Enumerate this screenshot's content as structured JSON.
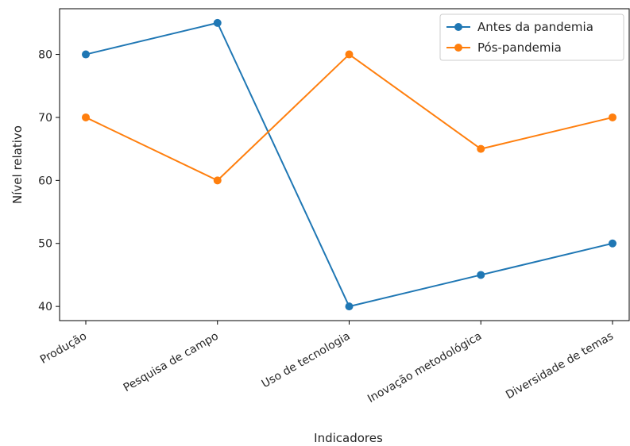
{
  "chart_data": {
    "type": "line",
    "title": "",
    "xlabel": "Indicadores",
    "ylabel": "Nível relativo",
    "categories": [
      "Produção",
      "Pesquisa de campo",
      "Uso de tecnologia",
      "Inovação metodológica",
      "Diversidade de temas"
    ],
    "yticks": [
      40,
      50,
      60,
      70,
      80
    ],
    "ylim": [
      37.75,
      87.25
    ],
    "grid": false,
    "legend_position": "top-right",
    "series": [
      {
        "name": "Antes da pandemia",
        "values": [
          80,
          85,
          40,
          45,
          50
        ],
        "color": "#1f77b4",
        "marker": "circle"
      },
      {
        "name": "Pós-pandemia",
        "values": [
          70,
          60,
          80,
          65,
          70
        ],
        "color": "#ff7f0e",
        "marker": "circle"
      }
    ]
  }
}
